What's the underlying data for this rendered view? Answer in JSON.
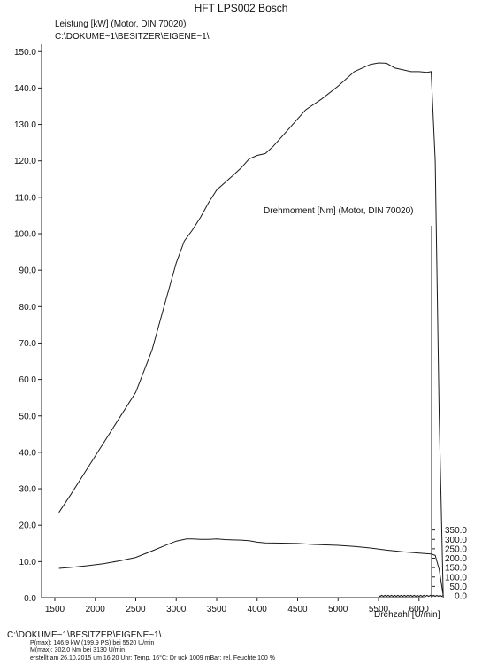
{
  "chart_data": {
    "type": "line",
    "title": "HFT LPS002 Bosch",
    "left_axis": {
      "label": "Leistung [kW] (Motor, DIN 70020)",
      "sublabel": "C:\\DOKUME~1\\BESITZER\\EIGENE~1\\",
      "ylim": [
        0,
        155
      ],
      "ticks": [
        "0.0",
        "10.0",
        "20.0",
        "30.0",
        "40.0",
        "50.0",
        "60.0",
        "70.0",
        "80.0",
        "90.0",
        "100.0",
        "110.0",
        "120.0",
        "130.0",
        "140.0",
        "150.0"
      ]
    },
    "right_axis": {
      "label": "Drehmoment [Nm] (Motor, DIN 70020)",
      "ticks": [
        "0.0",
        "50.0",
        "100.0",
        "150.0",
        "200.0",
        "250.0",
        "300.0",
        "350.0"
      ]
    },
    "x_axis": {
      "label": "Drehzahl [U/min]",
      "xlim": [
        1400,
        6500
      ],
      "ticks": [
        "1500",
        "2000",
        "2500",
        "3000",
        "3500",
        "4000",
        "4500",
        "5000",
        "5500",
        "6000"
      ]
    },
    "grid": false,
    "series": [
      {
        "axis": "left",
        "x": [
          1550,
          1700,
          1900,
          2100,
          2300,
          2500,
          2700,
          2850,
          3000,
          3100,
          3200,
          3300,
          3400,
          3500,
          3600,
          3700,
          3800,
          3900,
          4000,
          4100,
          4200,
          4400,
          4600,
          4800,
          5000,
          5200,
          5400,
          5500,
          5600,
          5700,
          5800,
          5900,
          6000,
          6100,
          6150,
          6200,
          6250,
          6300
        ],
        "values": [
          23.5,
          28.5,
          35.5,
          42.5,
          49.5,
          56.5,
          68,
          80,
          92,
          98,
          101,
          104.5,
          108.5,
          112,
          114,
          116,
          118,
          120.5,
          121.5,
          122,
          124,
          129,
          134,
          137,
          140.5,
          144.5,
          146.5,
          146.9,
          146.8,
          145.5,
          145,
          144.5,
          144.5,
          144.3,
          144.5,
          120,
          50,
          0
        ]
      },
      {
        "axis": "right",
        "x": [
          1550,
          1700,
          1900,
          2100,
          2300,
          2500,
          2700,
          2900,
          3000,
          3130,
          3200,
          3300,
          3400,
          3500,
          3600,
          3700,
          3800,
          3900,
          4000,
          4100,
          4300,
          4500,
          4700,
          5000,
          5200,
          5400,
          5600,
          5800,
          6000,
          6150,
          6200,
          6250,
          6300
        ],
        "values": [
          146,
          151,
          160,
          171,
          186,
          204,
          238,
          274,
          291,
          302,
          302,
          300,
          300,
          302,
          299,
          297,
          296,
          293,
          285,
          281,
          280,
          278,
          273,
          268,
          262,
          254,
          243,
          234,
          227,
          222,
          215,
          140,
          0
        ]
      }
    ],
    "noise_line": {
      "x_start": 5500,
      "x_end": 6300,
      "value": 0.6
    }
  },
  "footer": {
    "path": "C:\\DOKUME~1\\BESITZER\\EIGENE~1\\",
    "power_max": "P(max):  146.9 kW (199.9 PS) bei 5520 U/min",
    "torque_max": "M(max):  302.0 Nm bei 3130 U/min",
    "created": "erstellt am 26.10.2015 um 16:20 Uhr; Temp. 16°C; Dr uck 1009 mBar; rel. Feuchte 100 %"
  }
}
